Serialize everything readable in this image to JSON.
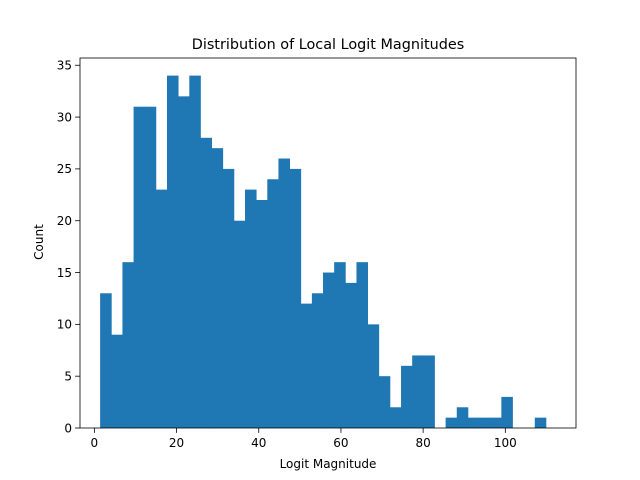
{
  "chart_data": {
    "type": "bar",
    "title": "Distribution of Local Logit Magnitudes",
    "xlabel": "Logit Magnitude",
    "ylabel": "Count",
    "xlim": [
      -3.5,
      117.2
    ],
    "ylim": [
      0,
      35.7
    ],
    "xticks": [
      0,
      20,
      40,
      60,
      80,
      100
    ],
    "yticks": [
      0,
      5,
      10,
      15,
      20,
      25,
      30,
      35
    ],
    "bin_start": 1.4,
    "bin_width": 2.712,
    "values": [
      13,
      9,
      16,
      31,
      31,
      23,
      34,
      32,
      34,
      28,
      27,
      25,
      20,
      23,
      22,
      24,
      26,
      25,
      12,
      13,
      15,
      16,
      14,
      16,
      10,
      5,
      2,
      6,
      7,
      7,
      0,
      1,
      2,
      1,
      1,
      1,
      3,
      0,
      0,
      1
    ],
    "bar_color": "#1f77b4",
    "grid": false
  }
}
